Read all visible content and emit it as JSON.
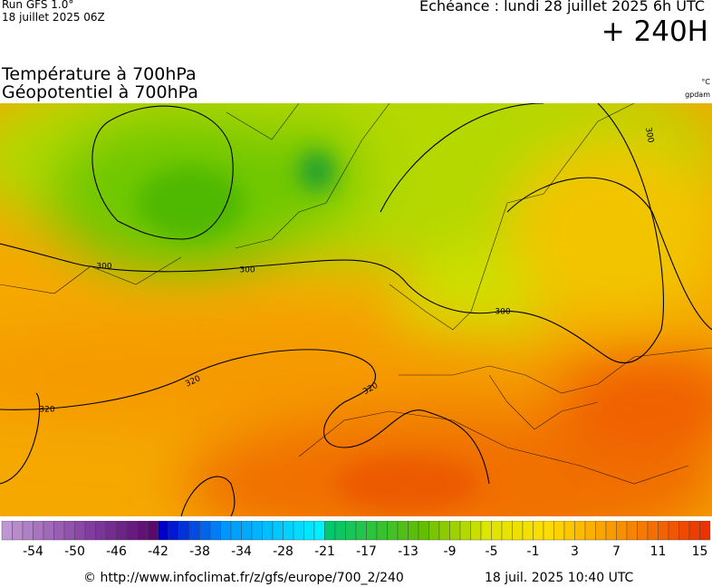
{
  "header": {
    "run": "Run GFS 1.0°",
    "date": "18 juillet 2025 06Z",
    "echeance": "Echéance : lundi 28 juillet 2025 6h UTC",
    "lead": "+ 240H"
  },
  "title": {
    "line1": "Température à 700hPa",
    "line2": "Géopotentiel à 700hPa",
    "unit_temp": "°C",
    "unit_geo": "gpdam"
  },
  "map": {
    "contour_labels": [
      "300",
      "300",
      "300",
      "300",
      "320",
      "320",
      "320"
    ]
  },
  "colorbar": {
    "labels": [
      "-54",
      "-50",
      "-46",
      "-42",
      "-38",
      "-34",
      "-28",
      "-21",
      "-17",
      "-13",
      "-9",
      "-5",
      "-1",
      "3",
      "7",
      "11",
      "15"
    ]
  },
  "footer": {
    "source": "© http://www.infoclimat.fr/z/gfs/europe/700_2/240",
    "timestamp": "18 juil. 2025 10:40 UTC"
  }
}
